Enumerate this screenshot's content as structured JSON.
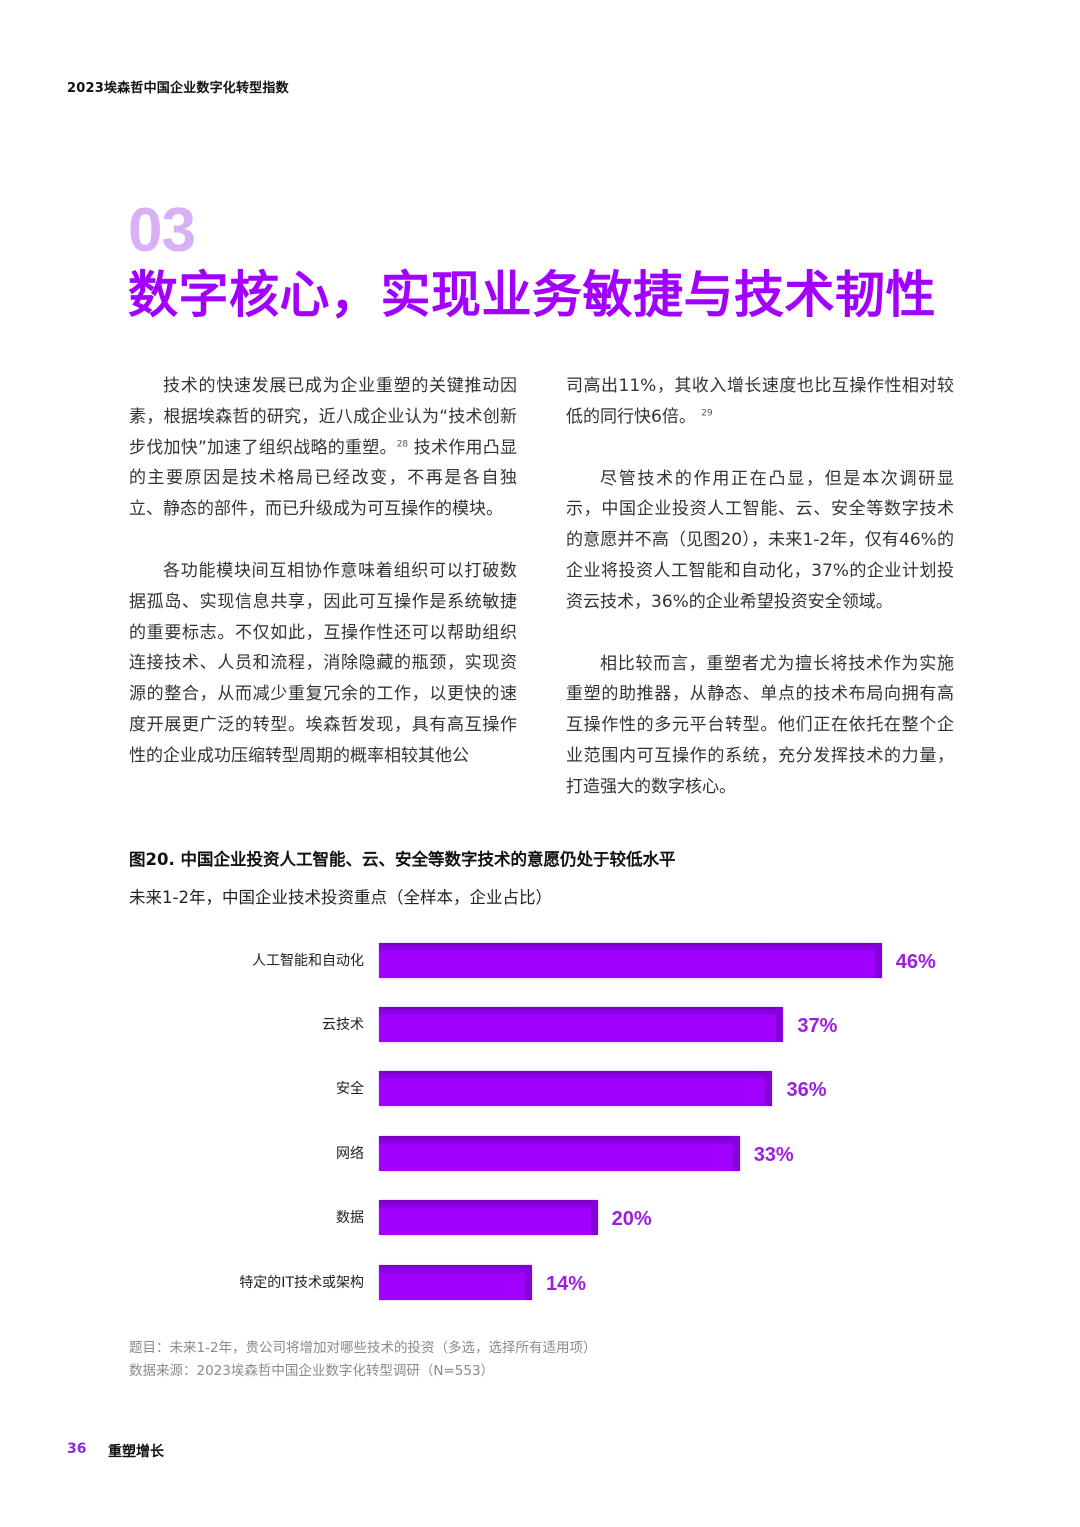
{
  "header": {
    "running_title": "2023埃森哲中国企业数字化转型指数"
  },
  "section": {
    "number": "03",
    "title": "数字核心，实现业务敏捷与技术韧性"
  },
  "body": {
    "left_column": [
      {
        "text": "技术的快速发展已成为企业重塑的关键推动因素，根据埃森哲的研究，近八成企业认为“技术创新步伐加快”加速了组织战略的重塑。",
        "footnote": "28",
        "text_after": " 技术作用凸显的主要原因是技术格局已经改变，不再是各自独立、静态的部件，而已升级成为可互操作的模块。"
      },
      {
        "text": "各功能模块间互相协作意味着组织可以打破数据孤岛、实现信息共享，因此可互操作是系统敏捷的重要标志。不仅如此，互操作性还可以帮助组织连接技术、人员和流程，消除隐藏的瓶颈，实现资源的整合，从而减少重复冗余的工作，以更快的速度开展更广泛的转型。埃森哲发现，具有高互操作性的企业成功压缩转型周期的概率相较其他公"
      }
    ],
    "right_column": [
      {
        "text": "司高出11%，其收入增长速度也比互操作性相对较低的同行快6倍。",
        "footnote": "29"
      },
      {
        "text": "尽管技术的作用正在凸显，但是本次调研显示，中国企业投资人工智能、云、安全等数字技术的意愿并不高（见图20），未来1-2年，仅有46%的企业将投资人工智能和自动化，37%的企业计划投资云技术，36%的企业希望投资安全领域。"
      },
      {
        "text": "相比较而言，重塑者尤为擅长将技术作为实施重塑的助推器，从静态、单点的技术布局向拥有高互操作性的多元平台转型。他们正在依托在整个企业范围内可互操作的系统，充分发挥技术的力量，打造强大的数字核心。"
      }
    ]
  },
  "figure": {
    "title": "图20. 中国企业投资人工智能、云、安全等数字技术的意愿仍处于较低水平",
    "subtitle": "未来1-2年，中国企业技术投资重点（全样本，企业占比）",
    "note_question": "题目：未来1-2年，贵公司将增加对哪些技术的投资（多选，选择所有适用项）",
    "note_source": "数据来源：2023埃森哲中国企业数字化转型调研（N=553）"
  },
  "chart_data": {
    "type": "bar",
    "orientation": "horizontal",
    "title": "图20. 中国企业投资人工智能、云、安全等数字技术的意愿仍处于较低水平",
    "subtitle": "未来1-2年，中国企业技术投资重点（全样本，企业占比）",
    "categories": [
      "人工智能和自动化",
      "云技术",
      "安全",
      "网络",
      "数据",
      "特定的IT技术或架构"
    ],
    "values": [
      46,
      37,
      36,
      33,
      20,
      14
    ],
    "value_labels": [
      "46%",
      "37%",
      "36%",
      "33%",
      "20%",
      "14%"
    ],
    "xlabel": "",
    "ylabel": "",
    "unit": "%",
    "grid": false,
    "legend": null,
    "bar_color": "#a100ff",
    "label_color": "#9a1fe0"
  },
  "footer": {
    "page_number": "36",
    "section_name": "重塑增长"
  },
  "colors": {
    "accent": "#a100ff",
    "section_number": "#d7b0f5",
    "notes": "#8a8a8a"
  }
}
